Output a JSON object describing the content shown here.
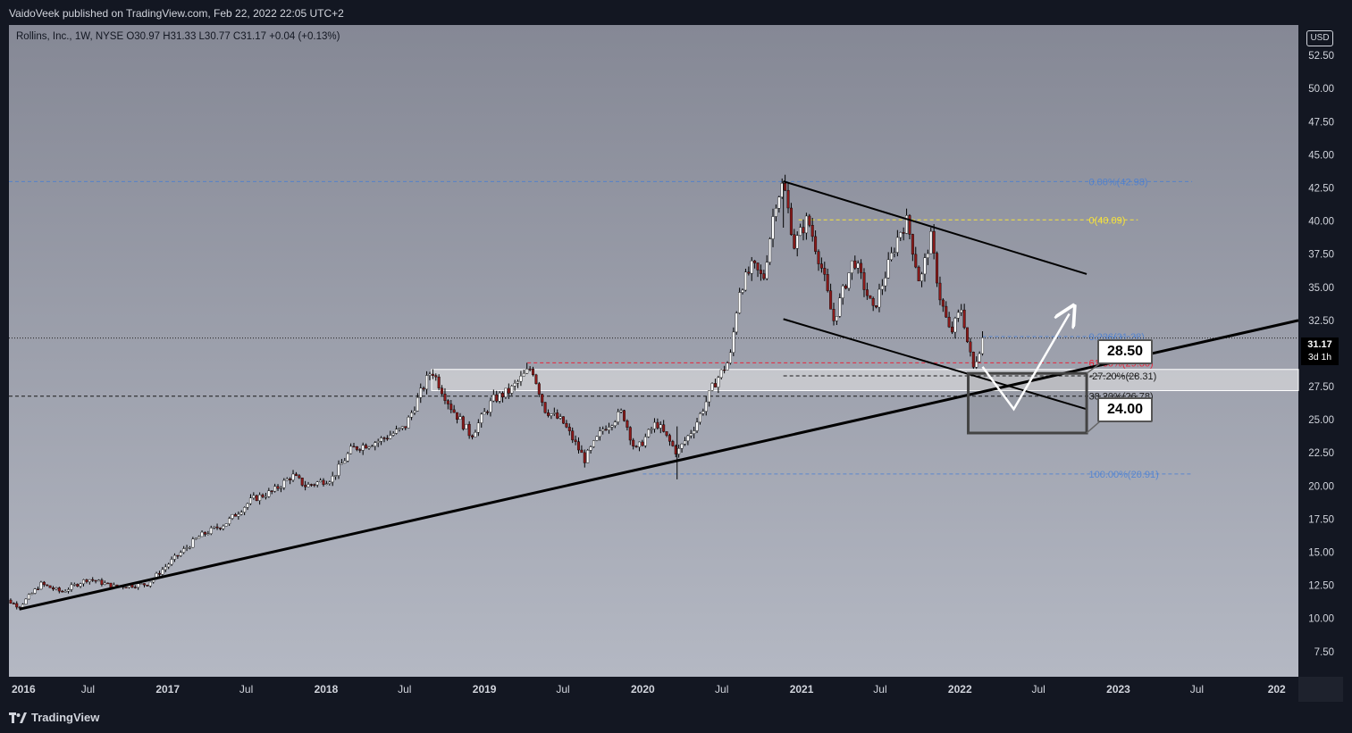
{
  "header": {
    "published": "VaidoVeek published on TradingView.com, Feb 22, 2022 22:05 UTC+2"
  },
  "legend": {
    "text": "Rollins, Inc., 1W, NYSE  O30.97  H31.33  L30.77  C31.17  +0.04 (+0.13%)"
  },
  "currency": "USD",
  "last_price": {
    "value": "31.17",
    "countdown": "3d 1h"
  },
  "footer": {
    "brand": "TradingView"
  },
  "colors": {
    "bg_top": "#858895",
    "bg_bottom": "#b4b8c3",
    "candle_up": "#ffffff",
    "candle_down": "#8b1a1a",
    "fib_blue": "#3d7bd9",
    "fib_yellow": "#f7e33a",
    "fib_red": "#e8263b",
    "zone": "#e6e6e6"
  },
  "chart_data": {
    "type": "candlestick",
    "symbol": "Rollins, Inc.",
    "interval": "1W",
    "exchange": "NYSE",
    "y_axis": {
      "range": [
        5.6,
        54.8
      ],
      "ticks": [
        "52.50",
        "50.00",
        "47.50",
        "45.00",
        "42.50",
        "40.00",
        "37.50",
        "35.00",
        "32.50",
        "30.00",
        "27.50",
        "25.00",
        "22.50",
        "20.00",
        "17.50",
        "15.00",
        "12.50",
        "10.00",
        "7.50"
      ]
    },
    "x_axis": {
      "range": [
        "2016-01-01",
        "2024-02-20"
      ],
      "ticks": [
        {
          "label": "2016",
          "date": "2016-01-01"
        },
        {
          "label": "Jul",
          "date": "2016-07-01"
        },
        {
          "label": "2017",
          "date": "2017-01-01"
        },
        {
          "label": "Jul",
          "date": "2017-07-01"
        },
        {
          "label": "2018",
          "date": "2018-01-01"
        },
        {
          "label": "Jul",
          "date": "2018-07-01"
        },
        {
          "label": "2019",
          "date": "2019-01-01"
        },
        {
          "label": "Jul",
          "date": "2019-07-01"
        },
        {
          "label": "2020",
          "date": "2020-01-01"
        },
        {
          "label": "Jul",
          "date": "2020-07-01"
        },
        {
          "label": "2021",
          "date": "2021-01-01"
        },
        {
          "label": "Jul",
          "date": "2021-07-01"
        },
        {
          "label": "2022",
          "date": "2022-01-01"
        },
        {
          "label": "Jul",
          "date": "2022-07-01"
        },
        {
          "label": "2023",
          "date": "2023-01-01"
        },
        {
          "label": "Jul",
          "date": "2023-07-01"
        },
        {
          "label": "202",
          "date": "2024-01-01"
        }
      ]
    },
    "price_path": [
      [
        "2015-12-01",
        11.8
      ],
      [
        "2016-01-25",
        10.9
      ],
      [
        "2016-03-15",
        12.6
      ],
      [
        "2016-05-01",
        12.0
      ],
      [
        "2016-07-01",
        13.0
      ],
      [
        "2016-09-01",
        12.4
      ],
      [
        "2016-11-15",
        12.6
      ],
      [
        "2017-01-15",
        14.5
      ],
      [
        "2017-03-15",
        16.2
      ],
      [
        "2017-05-15",
        17.2
      ],
      [
        "2017-07-15",
        19.0
      ],
      [
        "2017-09-01",
        19.6
      ],
      [
        "2017-10-15",
        20.8
      ],
      [
        "2017-11-15",
        20.0
      ],
      [
        "2018-01-15",
        20.6
      ],
      [
        "2018-03-01",
        22.8
      ],
      [
        "2018-05-01",
        23.4
      ],
      [
        "2018-07-01",
        24.4
      ],
      [
        "2018-09-01",
        28.8
      ],
      [
        "2018-10-15",
        26.0
      ],
      [
        "2018-12-01",
        23.8
      ],
      [
        "2019-01-20",
        26.5
      ],
      [
        "2019-03-01",
        27.2
      ],
      [
        "2019-04-20",
        29.0
      ],
      [
        "2019-05-20",
        25.8
      ],
      [
        "2019-07-01",
        24.8
      ],
      [
        "2019-08-20",
        22.0
      ],
      [
        "2019-10-01",
        24.3
      ],
      [
        "2019-11-15",
        25.6
      ],
      [
        "2019-12-15",
        22.6
      ],
      [
        "2020-02-01",
        24.8
      ],
      [
        "2020-03-20",
        22.5
      ],
      [
        "2020-05-01",
        24.6
      ],
      [
        "2020-06-15",
        27.8
      ],
      [
        "2020-07-20",
        29.6
      ],
      [
        "2020-08-10",
        34.8
      ],
      [
        "2020-09-10",
        36.6
      ],
      [
        "2020-10-05",
        35.6
      ],
      [
        "2020-11-01",
        41.4
      ],
      [
        "2020-11-20",
        42.9
      ],
      [
        "2020-12-15",
        38.2
      ],
      [
        "2021-01-15",
        40.2
      ],
      [
        "2021-02-20",
        36.0
      ],
      [
        "2021-03-15",
        32.4
      ],
      [
        "2021-05-01",
        37.2
      ],
      [
        "2021-06-15",
        33.2
      ],
      [
        "2021-08-15",
        39.2
      ],
      [
        "2021-09-01",
        40.0
      ],
      [
        "2021-10-01",
        35.2
      ],
      [
        "2021-10-25",
        38.9
      ],
      [
        "2021-11-15",
        34.4
      ],
      [
        "2021-12-10",
        31.4
      ],
      [
        "2022-01-05",
        33.5
      ],
      [
        "2022-01-20",
        30.5
      ],
      [
        "2022-02-01",
        28.9
      ],
      [
        "2022-02-22",
        31.17
      ]
    ],
    "last_close": 31.17,
    "fibonacci": [
      {
        "label": "0(40.09)",
        "value": 40.09,
        "color": "fib_yellow"
      },
      {
        "label": "61.80%(29.30)",
        "value": 29.3,
        "color": "fib_red"
      },
      {
        "label": "-27.20%(28.31)",
        "value": 28.31,
        "color": "dark"
      },
      {
        "label": "38.20%(26.78)",
        "value": 26.78,
        "color": "dark"
      },
      {
        "label": "100.00%(20.91)",
        "value": 20.91,
        "color": "fib_blue"
      },
      {
        "label": "0.00%(42.98)",
        "value": 42.98,
        "color": "fib_blue"
      },
      {
        "label": "0.236(31.28)",
        "value": 31.28,
        "color": "fib_blue"
      }
    ],
    "support_zone": [
      27.2,
      28.8
    ],
    "target_box": {
      "from": "2022-01-20",
      "to": "2022-10-20",
      "top": 28.5,
      "bottom": 24.0
    },
    "callouts": [
      "28.50",
      "24.00"
    ],
    "trendlines": [
      {
        "name": "long-term-support",
        "from": [
          "2016-01-25",
          10.7
        ],
        "to": [
          "2024-02-20",
          32.5
        ]
      },
      {
        "name": "channel-upper",
        "from": [
          "2020-11-20",
          43.0
        ],
        "to": [
          "2022-10-20",
          36.0
        ]
      },
      {
        "name": "channel-lower",
        "from": [
          "2020-11-20",
          32.6
        ],
        "to": [
          "2022-10-20",
          25.8
        ]
      }
    ],
    "projection_path": [
      [
        "2022-02-22",
        29.0
      ],
      [
        "2022-05-05",
        25.8
      ],
      [
        "2022-09-10",
        33.0
      ]
    ],
    "grid": false,
    "legend_position": "top-left"
  }
}
